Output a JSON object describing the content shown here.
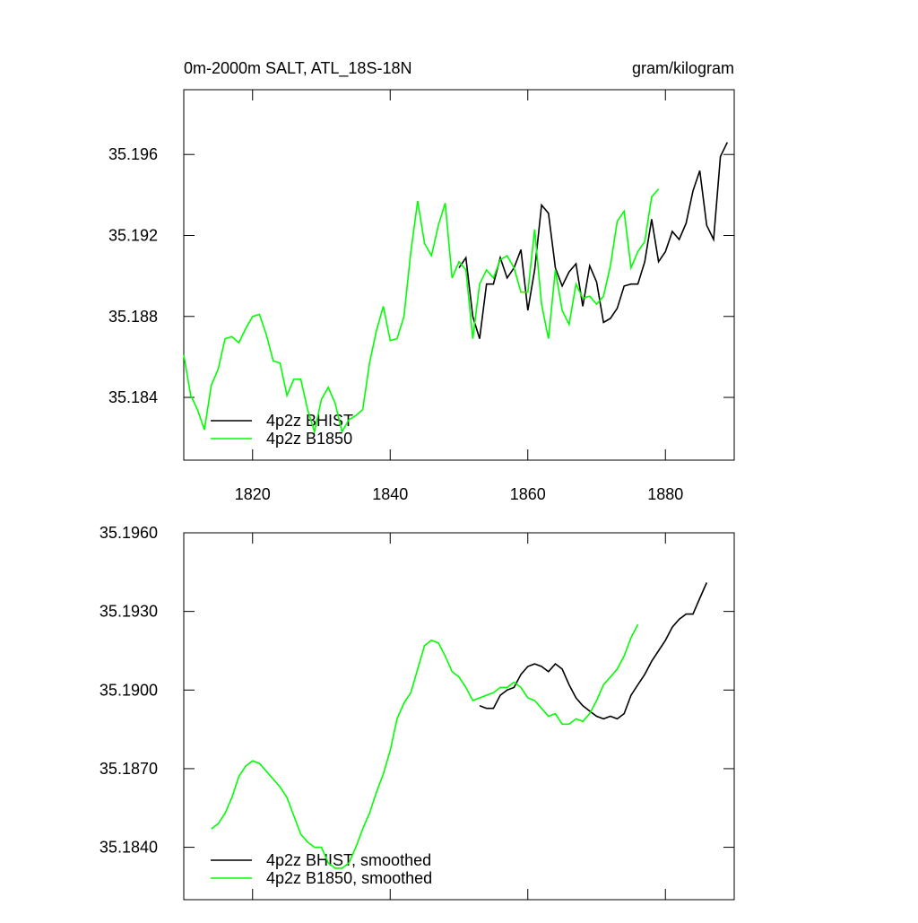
{
  "chart_data": [
    {
      "type": "line",
      "title": "0m-2000m SALT, ATL_18S-18N",
      "units": "gram/kilogram",
      "xlim": [
        1810,
        1890
      ],
      "xticks": [
        1820,
        1840,
        1860,
        1880
      ],
      "ylim": [
        35.1809,
        35.1992
      ],
      "yticks": [
        35.184,
        35.188,
        35.192,
        35.196
      ],
      "series": [
        {
          "name": "4p2z BHIST",
          "color": "#000000",
          "x": [
            1850,
            1851,
            1852,
            1853,
            1854,
            1855,
            1856,
            1857,
            1858,
            1859,
            1860,
            1861,
            1862,
            1863,
            1864,
            1865,
            1866,
            1867,
            1868,
            1869,
            1870,
            1871,
            1872,
            1873,
            1874,
            1875,
            1876,
            1877,
            1878,
            1879,
            1880,
            1881,
            1882,
            1883,
            1884,
            1885,
            1886,
            1887,
            1888,
            1889
          ],
          "values": [
            35.1904,
            35.1909,
            35.188,
            35.1869,
            35.1896,
            35.1896,
            35.1909,
            35.1899,
            35.1904,
            35.1913,
            35.1883,
            35.1903,
            35.1935,
            35.1931,
            35.1904,
            35.1895,
            35.1902,
            35.1906,
            35.1885,
            35.1905,
            35.1897,
            35.1877,
            35.1879,
            35.1884,
            35.1895,
            35.1896,
            35.1896,
            35.1907,
            35.1928,
            35.1907,
            35.1912,
            35.1922,
            35.1918,
            35.1926,
            35.1942,
            35.1952,
            35.1925,
            35.1918,
            35.1959,
            35.1966
          ]
        },
        {
          "name": "4p2z B1850",
          "color": "#00ff00",
          "x": [
            1810,
            1811,
            1812,
            1813,
            1814,
            1815,
            1816,
            1817,
            1818,
            1819,
            1820,
            1821,
            1822,
            1823,
            1824,
            1825,
            1826,
            1827,
            1828,
            1829,
            1830,
            1831,
            1832,
            1833,
            1834,
            1835,
            1836,
            1837,
            1838,
            1839,
            1840,
            1841,
            1842,
            1843,
            1844,
            1845,
            1846,
            1847,
            1848,
            1849,
            1850,
            1851,
            1852,
            1853,
            1854,
            1855,
            1856,
            1857,
            1858,
            1859,
            1860,
            1861,
            1862,
            1863,
            1864,
            1865,
            1866,
            1867,
            1868,
            1869,
            1870,
            1871,
            1872,
            1873,
            1874,
            1875,
            1876,
            1877,
            1878,
            1879
          ],
          "values": [
            35.1861,
            35.1841,
            35.1834,
            35.1824,
            35.1846,
            35.1854,
            35.1869,
            35.187,
            35.1867,
            35.1874,
            35.188,
            35.1881,
            35.1871,
            35.1858,
            35.1857,
            35.1841,
            35.1849,
            35.1849,
            35.1834,
            35.1823,
            35.1839,
            35.1845,
            35.1837,
            35.1823,
            35.1829,
            35.1831,
            35.1834,
            35.1857,
            35.1873,
            35.1885,
            35.1868,
            35.1869,
            35.188,
            35.1912,
            35.1937,
            35.1916,
            35.191,
            35.1925,
            35.1936,
            35.1899,
            35.1907,
            35.1903,
            35.1869,
            35.1896,
            35.1903,
            35.1899,
            35.1908,
            35.191,
            35.1904,
            35.1892,
            35.1892,
            35.1923,
            35.1886,
            35.1869,
            35.1903,
            35.1883,
            35.1876,
            35.1896,
            35.1889,
            35.189,
            35.1886,
            35.189,
            35.1905,
            35.1927,
            35.1932,
            35.1904,
            35.1912,
            35.1917,
            35.1939,
            35.1943
          ]
        }
      ]
    },
    {
      "type": "line",
      "xlim": [
        1810,
        1890
      ],
      "xticks": [
        1820,
        1840,
        1860,
        1880
      ],
      "xtick_labels": false,
      "ylim": [
        35.182,
        35.196
      ],
      "yticks": [
        {
          "value": 35.184,
          "label": "35.1840"
        },
        {
          "value": 35.187,
          "label": "35.1870"
        },
        {
          "value": 35.19,
          "label": "35.1900"
        },
        {
          "value": 35.193,
          "label": "35.1930"
        },
        {
          "value": 35.196,
          "label": "35.1960"
        }
      ],
      "series": [
        {
          "name": "4p2z BHIST, smoothed",
          "color": "#000000",
          "x": [
            1853,
            1854,
            1855,
            1856,
            1857,
            1858,
            1859,
            1860,
            1861,
            1862,
            1863,
            1864,
            1865,
            1866,
            1867,
            1868,
            1869,
            1870,
            1871,
            1872,
            1873,
            1874,
            1875,
            1876,
            1877,
            1878,
            1879,
            1880,
            1881,
            1882,
            1883,
            1884,
            1885,
            1886
          ],
          "values": [
            35.1894,
            35.1893,
            35.1893,
            35.1898,
            35.19,
            35.1901,
            35.1906,
            35.1909,
            35.191,
            35.1909,
            35.1907,
            35.191,
            35.1908,
            35.1902,
            35.1897,
            35.1894,
            35.1892,
            35.189,
            35.1889,
            35.189,
            35.1889,
            35.1891,
            35.1898,
            35.1902,
            35.1906,
            35.1911,
            35.1915,
            35.1919,
            35.1924,
            35.1927,
            35.1929,
            35.1929,
            35.1935,
            35.1941
          ]
        },
        {
          "name": "4p2z B1850, smoothed",
          "color": "#00ff00",
          "x": [
            1814,
            1815,
            1816,
            1817,
            1818,
            1819,
            1820,
            1821,
            1822,
            1823,
            1824,
            1825,
            1826,
            1827,
            1828,
            1829,
            1830,
            1831,
            1832,
            1833,
            1834,
            1835,
            1836,
            1837,
            1838,
            1839,
            1840,
            1841,
            1842,
            1843,
            1844,
            1845,
            1846,
            1847,
            1848,
            1849,
            1850,
            1851,
            1852,
            1853,
            1854,
            1855,
            1856,
            1857,
            1858,
            1859,
            1860,
            1861,
            1862,
            1863,
            1864,
            1865,
            1866,
            1867,
            1868,
            1869,
            1870,
            1871,
            1872,
            1873,
            1874,
            1875,
            1876
          ],
          "values": [
            35.1847,
            35.1849,
            35.1853,
            35.1859,
            35.1867,
            35.1871,
            35.1873,
            35.1872,
            35.1869,
            35.1866,
            35.1863,
            35.1859,
            35.1852,
            35.1845,
            35.1842,
            35.184,
            35.184,
            35.1834,
            35.1832,
            35.1832,
            35.1834,
            35.184,
            35.1847,
            35.1853,
            35.1861,
            35.1868,
            35.1877,
            35.1889,
            35.1895,
            35.1899,
            35.1908,
            35.1917,
            35.1919,
            35.1918,
            35.1913,
            35.1907,
            35.1905,
            35.1901,
            35.1896,
            35.1897,
            35.1898,
            35.1899,
            35.1901,
            35.1901,
            35.1903,
            35.1901,
            35.1897,
            35.1896,
            35.1893,
            35.189,
            35.1891,
            35.1887,
            35.1887,
            35.1889,
            35.1888,
            35.1891,
            35.1896,
            35.1902,
            35.1905,
            35.1908,
            35.1913,
            35.192,
            35.1925
          ]
        }
      ]
    }
  ]
}
